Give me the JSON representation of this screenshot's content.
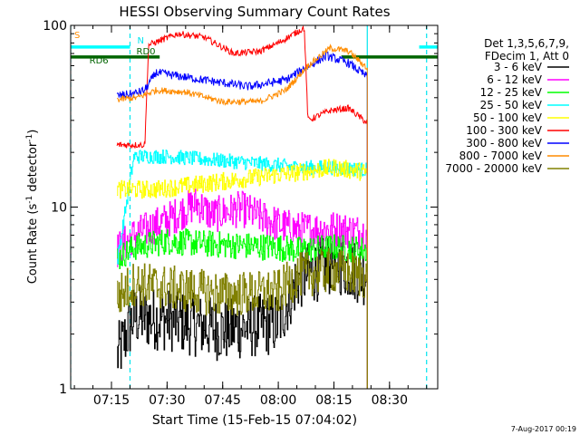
{
  "chart_data": {
    "type": "line",
    "title": "HESSI Observing Summary Count Rates",
    "xlabel": "Start Time (15-Feb-15 07:04:02)",
    "ylabel": "Count Rate (s",
    "ylabel_sup": "-1",
    "ylabel_tail": " detector",
    "ylabel_tail_sup": "-1",
    "ylabel_close": ")",
    "yscale": "log",
    "xlim": [
      "07:04",
      "08:43"
    ],
    "ylim": [
      1,
      100
    ],
    "x_ticks": [
      "07:15",
      "07:30",
      "07:45",
      "08:00",
      "08:15",
      "08:30"
    ],
    "y_ticks": [
      "1",
      "10",
      "100"
    ],
    "footer": "7-Aug-2017 00:19",
    "legend": {
      "header_lines": [
        "Det 1,3,5,6,7,9,",
        "FDecim 1, Att 0"
      ],
      "position": "right"
    },
    "annotations": [
      {
        "text": "S",
        "x": "07:04",
        "color": "#ff8c00"
      },
      {
        "text": "N",
        "x": "07:21",
        "color": "#00e5ee"
      },
      {
        "text": "RD0",
        "x": "07:21",
        "color": "#006400"
      },
      {
        "text": "RD6",
        "x": "07:11",
        "color": "#006400"
      }
    ],
    "flags": [
      {
        "name": "SAA",
        "color": "#00ffff",
        "segments": [
          [
            "07:04",
            "07:20"
          ],
          [
            "08:38",
            "08:43"
          ]
        ],
        "level": 76
      },
      {
        "name": "Night",
        "color": "#006400",
        "segments": [
          [
            "07:04",
            "07:28"
          ],
          [
            "08:17",
            "08:43"
          ]
        ],
        "level": 67
      }
    ],
    "vlines_dashed": [
      "07:04",
      "07:20",
      "08:40"
    ],
    "vlines_solid": [
      "08:24"
    ],
    "series": [
      {
        "name": "3 - 6 keV",
        "color": "#000000",
        "noise": 0.35,
        "step": true,
        "points": [
          [
            "07:16:30",
            1.5
          ],
          [
            "07:21",
            2.5
          ],
          [
            "07:30",
            2.4
          ],
          [
            "07:45",
            2.1
          ],
          [
            "08:00",
            2.3
          ],
          [
            "08:05",
            4.0
          ],
          [
            "08:15",
            5.0
          ],
          [
            "08:24",
            4.2
          ]
        ]
      },
      {
        "name": "6 - 12 keV",
        "color": "#ff00ff",
        "noise": 0.2,
        "step": true,
        "points": [
          [
            "07:16:30",
            5.8
          ],
          [
            "07:21",
            7.0
          ],
          [
            "07:30",
            8.5
          ],
          [
            "07:38",
            10.5
          ],
          [
            "07:42",
            9.0
          ],
          [
            "07:50",
            9.8
          ],
          [
            "08:00",
            8.0
          ],
          [
            "08:05",
            7.5
          ],
          [
            "08:15",
            7.6
          ],
          [
            "08:24",
            7.2
          ]
        ]
      },
      {
        "name": "12 - 25 keV",
        "color": "#00ff00",
        "noise": 0.15,
        "step": true,
        "points": [
          [
            "07:16:30",
            5.2
          ],
          [
            "07:21",
            6.0
          ],
          [
            "07:30",
            6.5
          ],
          [
            "07:45",
            6.2
          ],
          [
            "08:00",
            6.0
          ],
          [
            "08:05",
            5.8
          ],
          [
            "08:15",
            6.0
          ],
          [
            "08:24",
            5.8
          ]
        ]
      },
      {
        "name": "25 - 50 keV",
        "color": "#00ffff",
        "noise": 0.08,
        "step": true,
        "points": [
          [
            "07:16:30",
            5.0
          ],
          [
            "07:21",
            19
          ],
          [
            "07:30",
            19
          ],
          [
            "07:45",
            18
          ],
          [
            "08:00",
            17
          ],
          [
            "08:05",
            16.5
          ],
          [
            "08:15",
            16.5
          ],
          [
            "08:24",
            16
          ]
        ]
      },
      {
        "name": "50 - 100 keV",
        "color": "#ffff00",
        "noise": 0.1,
        "step": true,
        "points": [
          [
            "07:16:30",
            12.5
          ],
          [
            "07:21",
            12.5
          ],
          [
            "07:27",
            12.5
          ],
          [
            "08:05",
            15.5
          ],
          [
            "08:15",
            16.5
          ],
          [
            "08:24",
            15.5
          ]
        ]
      },
      {
        "name": "100 - 300 keV",
        "color": "#ff0000",
        "noise": 0.03,
        "step": false,
        "points": [
          [
            "07:16:30",
            22
          ],
          [
            "07:21",
            22
          ],
          [
            "07:24",
            22
          ],
          [
            "07:25",
            78
          ],
          [
            "07:33",
            90
          ],
          [
            "07:40",
            86
          ],
          [
            "07:48",
            70
          ],
          [
            "07:55",
            72
          ],
          [
            "08:00",
            80
          ],
          [
            "08:07",
            97
          ],
          [
            "08:08",
            30
          ],
          [
            "08:14",
            34
          ],
          [
            "08:19",
            35
          ],
          [
            "08:24",
            29
          ]
        ]
      },
      {
        "name": "300 - 800 keV",
        "color": "#0000ff",
        "noise": 0.04,
        "step": false,
        "points": [
          [
            "07:16:30",
            41
          ],
          [
            "07:21",
            42
          ],
          [
            "07:24",
            44
          ],
          [
            "07:27",
            55
          ],
          [
            "07:40",
            50
          ],
          [
            "07:52",
            46
          ],
          [
            "08:02",
            50
          ],
          [
            "08:07",
            58
          ],
          [
            "08:13",
            68
          ],
          [
            "08:19",
            62
          ],
          [
            "08:24",
            52
          ]
        ]
      },
      {
        "name": "800 - 7000 keV",
        "color": "#ff8c00",
        "noise": 0.03,
        "step": false,
        "points": [
          [
            "07:16:30",
            39
          ],
          [
            "07:22",
            40
          ],
          [
            "07:27",
            44
          ],
          [
            "07:35",
            43
          ],
          [
            "07:45",
            38
          ],
          [
            "07:55",
            38
          ],
          [
            "08:02",
            44
          ],
          [
            "08:08",
            60
          ],
          [
            "08:14",
            75
          ],
          [
            "08:19",
            72
          ],
          [
            "08:24",
            58
          ]
        ]
      },
      {
        "name": "7000 - 20000 keV",
        "color": "#808000",
        "noise": 0.25,
        "step": true,
        "points": [
          [
            "07:16:30",
            3.2
          ],
          [
            "07:21",
            3.8
          ],
          [
            "07:30",
            3.6
          ],
          [
            "07:45",
            3.3
          ],
          [
            "08:00",
            3.4
          ],
          [
            "08:05",
            4.2
          ],
          [
            "08:15",
            4.5
          ],
          [
            "08:24",
            4.1
          ]
        ]
      }
    ]
  }
}
